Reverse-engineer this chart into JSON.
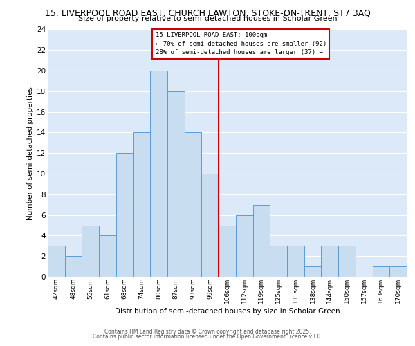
{
  "title1": "15, LIVERPOOL ROAD EAST, CHURCH LAWTON, STOKE-ON-TRENT, ST7 3AQ",
  "title2": "Size of property relative to semi-detached houses in Scholar Green",
  "xlabel": "Distribution of semi-detached houses by size in Scholar Green",
  "ylabel": "Number of semi-detached properties",
  "categories": [
    "42sqm",
    "48sqm",
    "55sqm",
    "61sqm",
    "68sqm",
    "74sqm",
    "80sqm",
    "87sqm",
    "93sqm",
    "99sqm",
    "106sqm",
    "112sqm",
    "119sqm",
    "125sqm",
    "131sqm",
    "138sqm",
    "144sqm",
    "150sqm",
    "157sqm",
    "163sqm",
    "170sqm"
  ],
  "values": [
    3,
    2,
    5,
    4,
    12,
    14,
    20,
    18,
    14,
    10,
    5,
    6,
    7,
    3,
    3,
    1,
    3,
    3,
    0,
    1,
    1
  ],
  "bar_color": "#c9ddf0",
  "bar_edge_color": "#5b9bd5",
  "annotation_title": "15 LIVERPOOL ROAD EAST: 100sqm",
  "annotation_line1": "← 70% of semi-detached houses are smaller (92)",
  "annotation_line2": "28% of semi-detached houses are larger (37) →",
  "ylim": [
    0,
    24
  ],
  "yticks": [
    0,
    2,
    4,
    6,
    8,
    10,
    12,
    14,
    16,
    18,
    20,
    22,
    24
  ],
  "background_color": "#dce9f8",
  "grid_color": "#ffffff",
  "property_line_color": "#cc0000",
  "footer1": "Contains HM Land Registry data © Crown copyright and database right 2025.",
  "footer2": "Contains public sector information licensed under the Open Government Licence v3.0."
}
